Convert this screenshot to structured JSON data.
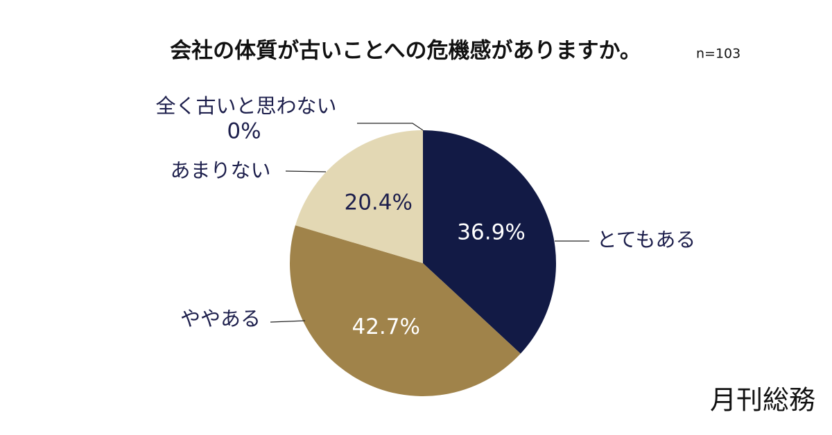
{
  "chart_data": {
    "type": "pie",
    "title": "会社の体質が古いことへの危機感がありますか。",
    "subtitle": "n=103",
    "categories": [
      "とてもある",
      "ややある",
      "あまりない",
      "全く古いと思わない"
    ],
    "values": [
      36.9,
      42.7,
      20.4,
      0
    ],
    "value_labels": [
      "36.9%",
      "42.7%",
      "20.4%",
      "0%"
    ],
    "colors": [
      "#121a45",
      "#a0834a",
      "#e3d8b4",
      "#f3eee0"
    ]
  },
  "brand": "月刊総務"
}
